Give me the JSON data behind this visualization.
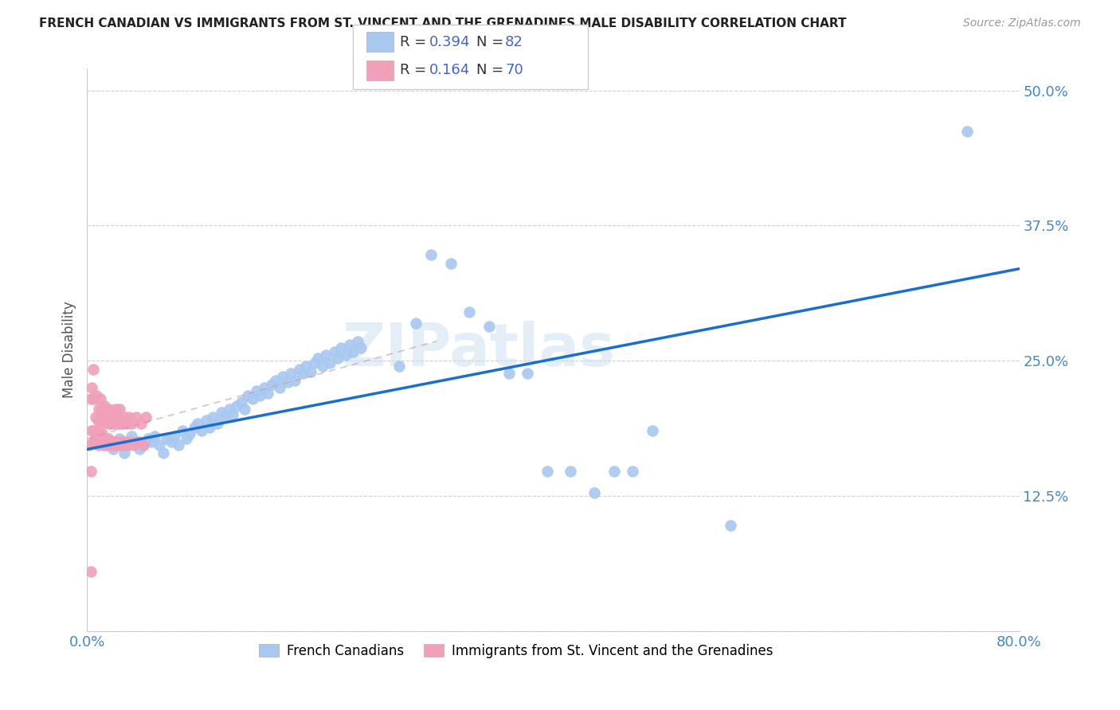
{
  "title": "FRENCH CANADIAN VS IMMIGRANTS FROM ST. VINCENT AND THE GRENADINES MALE DISABILITY CORRELATION CHART",
  "source": "Source: ZipAtlas.com",
  "ylabel": "Male Disability",
  "xlim": [
    0.0,
    0.8
  ],
  "ylim": [
    0.0,
    0.52
  ],
  "x_tick_positions": [
    0.0,
    0.2,
    0.4,
    0.6,
    0.8
  ],
  "x_tick_labels": [
    "0.0%",
    "",
    "",
    "",
    "80.0%"
  ],
  "y_tick_positions": [
    0.0,
    0.125,
    0.25,
    0.375,
    0.5
  ],
  "y_tick_labels": [
    "",
    "12.5%",
    "25.0%",
    "37.5%",
    "50.0%"
  ],
  "watermark": "ZIPatlas",
  "blue_color": "#a8c8f0",
  "pink_color": "#f0a0b8",
  "blue_line_color": "#1a6fcc",
  "pink_line_color": "#d090a8",
  "legend_text_color": "#4466cc",
  "legend_label_color": "#333333",
  "legend1_series": "French Canadians",
  "legend2_series": "Immigrants from St. Vincent and the Grenadines",
  "R_blue": 0.394,
  "N_blue": 82,
  "R_pink": 0.164,
  "N_pink": 70,
  "blue_x": [
    0.018,
    0.022,
    0.025,
    0.028,
    0.032,
    0.035,
    0.038,
    0.042,
    0.045,
    0.048,
    0.052,
    0.055,
    0.058,
    0.062,
    0.065,
    0.068,
    0.072,
    0.075,
    0.078,
    0.082,
    0.085,
    0.088,
    0.092,
    0.095,
    0.098,
    0.102,
    0.105,
    0.108,
    0.112,
    0.115,
    0.118,
    0.122,
    0.125,
    0.128,
    0.132,
    0.135,
    0.138,
    0.142,
    0.145,
    0.148,
    0.152,
    0.155,
    0.158,
    0.162,
    0.165,
    0.168,
    0.172,
    0.175,
    0.178,
    0.182,
    0.185,
    0.188,
    0.192,
    0.195,
    0.198,
    0.202,
    0.205,
    0.208,
    0.212,
    0.215,
    0.218,
    0.222,
    0.225,
    0.228,
    0.232,
    0.235,
    0.268,
    0.282,
    0.295,
    0.312,
    0.328,
    0.345,
    0.362,
    0.378,
    0.395,
    0.415,
    0.435,
    0.452,
    0.468,
    0.485,
    0.552,
    0.755
  ],
  "blue_y": [
    0.172,
    0.168,
    0.175,
    0.178,
    0.165,
    0.172,
    0.18,
    0.175,
    0.168,
    0.172,
    0.178,
    0.175,
    0.18,
    0.172,
    0.165,
    0.178,
    0.175,
    0.18,
    0.172,
    0.185,
    0.178,
    0.182,
    0.188,
    0.192,
    0.185,
    0.195,
    0.188,
    0.198,
    0.192,
    0.202,
    0.198,
    0.205,
    0.2,
    0.208,
    0.212,
    0.205,
    0.218,
    0.215,
    0.222,
    0.218,
    0.225,
    0.22,
    0.228,
    0.232,
    0.225,
    0.235,
    0.23,
    0.238,
    0.232,
    0.242,
    0.238,
    0.245,
    0.24,
    0.248,
    0.252,
    0.245,
    0.255,
    0.248,
    0.258,
    0.252,
    0.262,
    0.255,
    0.265,
    0.258,
    0.268,
    0.262,
    0.245,
    0.285,
    0.348,
    0.34,
    0.295,
    0.282,
    0.238,
    0.238,
    0.148,
    0.148,
    0.128,
    0.148,
    0.148,
    0.185,
    0.098,
    0.462
  ],
  "pink_x": [
    0.002,
    0.003,
    0.004,
    0.004,
    0.005,
    0.005,
    0.006,
    0.006,
    0.007,
    0.007,
    0.008,
    0.008,
    0.009,
    0.009,
    0.01,
    0.01,
    0.011,
    0.011,
    0.012,
    0.012,
    0.013,
    0.013,
    0.014,
    0.014,
    0.015,
    0.015,
    0.016,
    0.016,
    0.017,
    0.017,
    0.018,
    0.018,
    0.019,
    0.019,
    0.02,
    0.02,
    0.021,
    0.021,
    0.022,
    0.022,
    0.023,
    0.023,
    0.024,
    0.024,
    0.025,
    0.025,
    0.026,
    0.026,
    0.027,
    0.027,
    0.028,
    0.028,
    0.029,
    0.03,
    0.031,
    0.032,
    0.033,
    0.034,
    0.035,
    0.036,
    0.037,
    0.038,
    0.04,
    0.042,
    0.044,
    0.046,
    0.048,
    0.05,
    0.003,
    0.003
  ],
  "pink_y": [
    0.172,
    0.215,
    0.185,
    0.225,
    0.175,
    0.242,
    0.185,
    0.215,
    0.178,
    0.198,
    0.185,
    0.218,
    0.172,
    0.195,
    0.182,
    0.205,
    0.175,
    0.215,
    0.178,
    0.195,
    0.182,
    0.205,
    0.172,
    0.192,
    0.178,
    0.208,
    0.175,
    0.195,
    0.172,
    0.198,
    0.178,
    0.205,
    0.175,
    0.192,
    0.172,
    0.198,
    0.175,
    0.192,
    0.172,
    0.198,
    0.175,
    0.192,
    0.172,
    0.205,
    0.175,
    0.192,
    0.172,
    0.198,
    0.175,
    0.192,
    0.172,
    0.205,
    0.175,
    0.192,
    0.172,
    0.198,
    0.175,
    0.192,
    0.172,
    0.198,
    0.175,
    0.192,
    0.172,
    0.198,
    0.175,
    0.192,
    0.172,
    0.198,
    0.148,
    0.055
  ],
  "blue_trendline_x": [
    0.0,
    0.8
  ],
  "blue_trendline_y": [
    0.168,
    0.335
  ],
  "pink_trendline_x": [
    0.0,
    0.3
  ],
  "pink_trendline_y": [
    0.178,
    0.268
  ]
}
